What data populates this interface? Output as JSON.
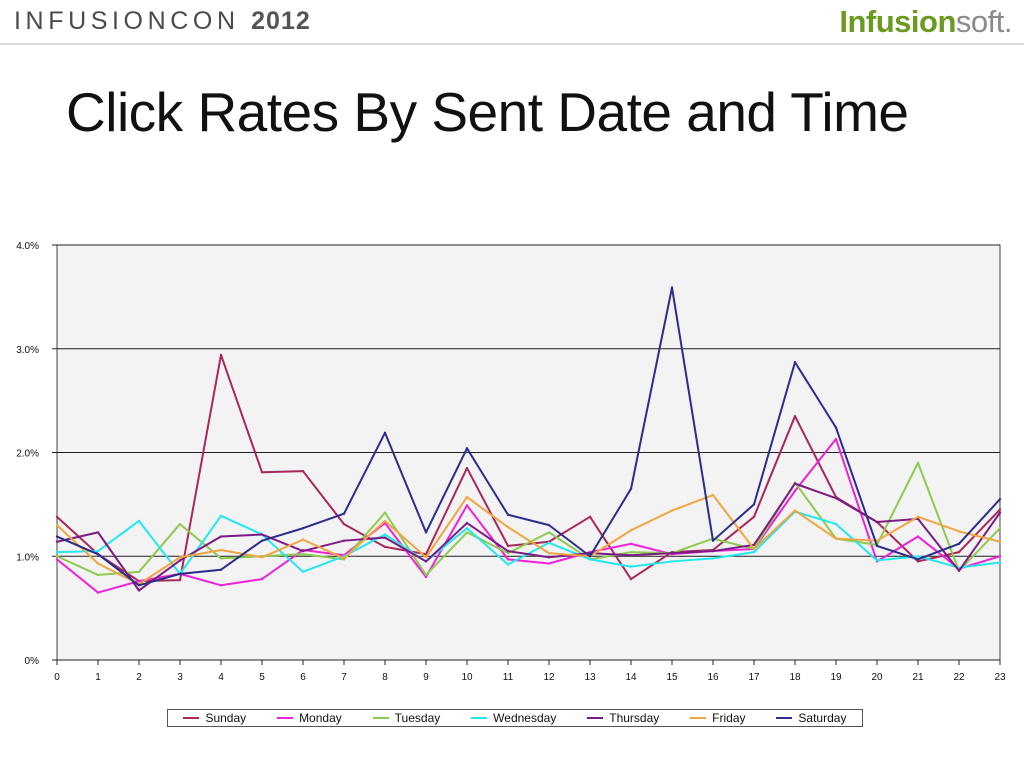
{
  "header": {
    "conference_name": "INFUSIONCON",
    "conference_year": "2012",
    "brand_part1": "Infusion",
    "brand_part2": "soft",
    "brand_dot": "."
  },
  "slide": {
    "title": "Click Rates By Sent Date and Time"
  },
  "chart_data": {
    "type": "line",
    "title": "",
    "xlabel": "",
    "ylabel": "",
    "x": [
      0,
      1,
      2,
      3,
      4,
      5,
      6,
      7,
      8,
      9,
      10,
      11,
      12,
      13,
      14,
      15,
      16,
      17,
      18,
      19,
      20,
      21,
      22,
      23
    ],
    "ylim": [
      0,
      4
    ],
    "y_ticks": [
      0,
      1,
      2,
      3,
      4
    ],
    "y_tick_labels": [
      "0%",
      "1.0%",
      "2.0%",
      "3.0%",
      "4.0%"
    ],
    "grid": "horizontal",
    "legend": "bottom",
    "series": [
      {
        "name": "Sunday",
        "color": "#a8285a",
        "values": [
          1.38,
          1.02,
          0.76,
          0.77,
          2.94,
          1.81,
          1.82,
          1.31,
          1.09,
          1.02,
          1.85,
          1.1,
          1.14,
          1.38,
          0.78,
          1.04,
          1.06,
          1.38,
          2.35,
          1.57,
          1.33,
          0.95,
          1.04,
          1.45
        ]
      },
      {
        "name": "Monday",
        "color": "#ee22d8",
        "values": [
          0.97,
          0.65,
          0.76,
          0.83,
          0.72,
          0.78,
          1.06,
          1.01,
          1.32,
          0.8,
          1.49,
          0.97,
          0.93,
          1.04,
          1.12,
          1.02,
          1.05,
          1.07,
          1.63,
          2.13,
          0.95,
          1.19,
          0.88,
          1.0
        ]
      },
      {
        "name": "Tuesday",
        "color": "#8ccb4e",
        "values": [
          1.0,
          0.82,
          0.85,
          1.31,
          0.98,
          1.0,
          1.02,
          0.97,
          1.42,
          0.82,
          1.23,
          1.03,
          1.23,
          0.97,
          1.04,
          1.03,
          1.17,
          1.07,
          1.71,
          1.17,
          1.11,
          1.9,
          0.86,
          1.27
        ]
      },
      {
        "name": "Wednesday",
        "color": "#22e8ee",
        "values": [
          1.04,
          1.05,
          1.34,
          0.83,
          1.39,
          1.21,
          0.85,
          1.0,
          1.21,
          0.95,
          1.27,
          0.92,
          1.13,
          0.97,
          0.9,
          0.95,
          0.98,
          1.04,
          1.43,
          1.31,
          0.96,
          1.0,
          0.89,
          0.94
        ]
      },
      {
        "name": "Thursday",
        "color": "#7c1b84",
        "values": [
          1.14,
          1.23,
          0.67,
          0.96,
          1.19,
          1.21,
          1.05,
          1.15,
          1.18,
          0.95,
          1.32,
          1.05,
          0.99,
          1.03,
          1.01,
          1.03,
          1.05,
          1.11,
          1.7,
          1.56,
          1.33,
          1.36,
          0.86,
          1.42
        ]
      },
      {
        "name": "Friday",
        "color": "#f0a541",
        "values": [
          1.3,
          0.93,
          0.73,
          0.99,
          1.06,
          0.99,
          1.16,
          0.98,
          1.34,
          0.99,
          1.57,
          1.28,
          1.03,
          1.0,
          1.25,
          1.44,
          1.59,
          1.07,
          1.44,
          1.17,
          1.15,
          1.38,
          1.24,
          1.14
        ]
      },
      {
        "name": "Saturday",
        "color": "#2a2d8a",
        "values": [
          1.19,
          1.02,
          0.72,
          0.83,
          0.87,
          1.15,
          1.27,
          1.41,
          2.19,
          1.23,
          2.04,
          1.4,
          1.3,
          1.0,
          1.65,
          3.59,
          1.15,
          1.5,
          2.87,
          2.24,
          1.1,
          0.97,
          1.12,
          1.55
        ]
      }
    ]
  }
}
